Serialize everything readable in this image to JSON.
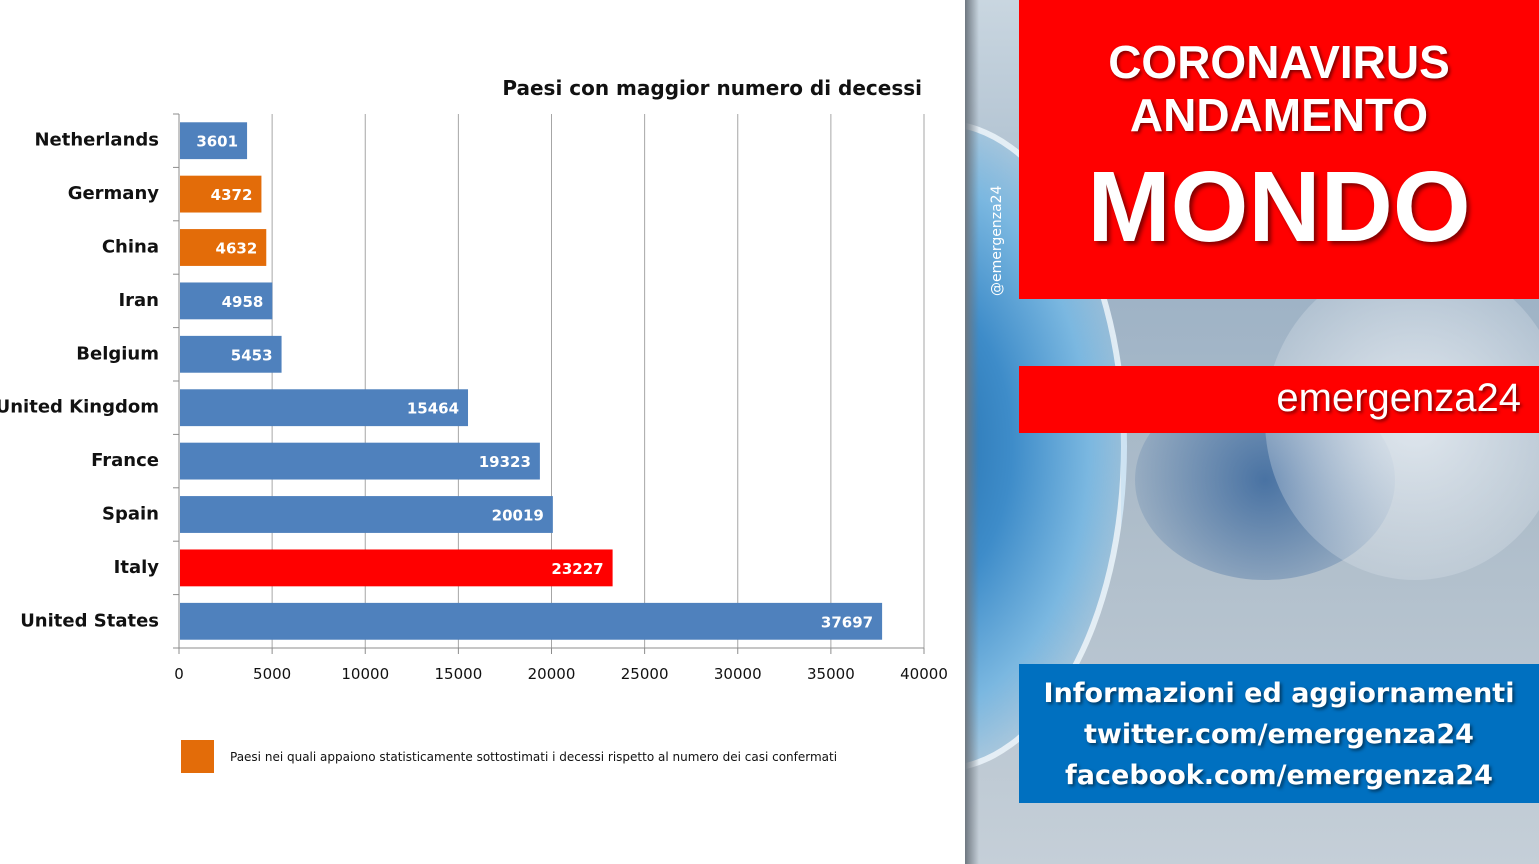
{
  "chart_data": {
    "type": "bar",
    "orientation": "horizontal",
    "title": "Paesi con maggior numero di decessi",
    "categories": [
      "Netherlands",
      "Germany",
      "China",
      "Iran",
      "Belgium",
      "United Kingdom",
      "France",
      "Spain",
      "Italy",
      "United States"
    ],
    "values": [
      3601,
      4372,
      4632,
      4958,
      5453,
      15464,
      19323,
      20019,
      23227,
      37697
    ],
    "data_labels": [
      "3601",
      "4372",
      "4632",
      "4958",
      "5453",
      "15464",
      "19323",
      "20019",
      "23227",
      "37697"
    ],
    "bar_colors": [
      "#4f81bd",
      "#e36c09",
      "#e36c09",
      "#4f81bd",
      "#4f81bd",
      "#4f81bd",
      "#4f81bd",
      "#4f81bd",
      "#ff0000",
      "#4f81bd"
    ],
    "xlim": [
      0,
      40000
    ],
    "x_ticks": [
      0,
      5000,
      10000,
      15000,
      20000,
      25000,
      30000,
      35000,
      40000
    ],
    "x_tick_labels": [
      "0",
      "5000",
      "10000",
      "15000",
      "20000",
      "25000",
      "30000",
      "35000",
      "40000"
    ],
    "xlabel": "",
    "ylabel": "",
    "grid": "vertical",
    "legend_placement": "bottom",
    "legend": {
      "color": "#e36c09",
      "text": "Paesi nei quali appaiono statisticamente sottostimati i decessi rispetto al numero dei casi confermati"
    }
  },
  "watermark": "@emergenza24",
  "title_box": {
    "line1": "CORONAVIRUS",
    "line2": "ANDAMENTO",
    "line3": "MONDO",
    "color": "#ff0000"
  },
  "brand_box": {
    "text": "emergenza24",
    "color": "#ff0000"
  },
  "info_box": {
    "line1": "Informazioni ed aggiornamenti",
    "line2": "twitter.com/emergenza24",
    "line3": "facebook.com/emergenza24",
    "color": "#0070c0"
  }
}
